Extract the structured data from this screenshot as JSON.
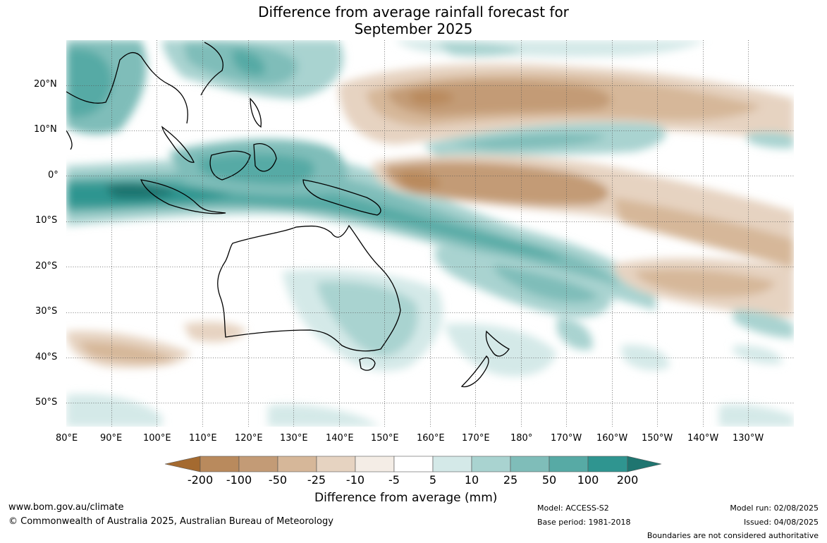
{
  "title": {
    "line1": "Difference from average rainfall forecast for",
    "line2": "September 2025"
  },
  "map": {
    "lat_labels": [
      "20°N",
      "10°N",
      "0°",
      "10°S",
      "20°S",
      "30°S",
      "40°S",
      "50°S"
    ],
    "lon_labels": [
      "80°E",
      "90°E",
      "100°E",
      "110°E",
      "120°E",
      "130°E",
      "140°E",
      "150°E",
      "160°E",
      "170°E",
      "180°",
      "170°W",
      "160°W",
      "150°W",
      "140°W",
      "130°W"
    ],
    "gridlines": "dotted",
    "lat_range": [
      "55°S",
      "30°N"
    ],
    "lon_range": [
      "80°E",
      "120°W"
    ]
  },
  "colorbar": {
    "labels": [
      "-200",
      "-100",
      "-50",
      "-25",
      "-10",
      "-5",
      "5",
      "10",
      "25",
      "50",
      "100",
      "200"
    ],
    "colors": [
      "#a46a30",
      "#b98a5d",
      "#c39b76",
      "#d6b799",
      "#e6d3c1",
      "#f4ede6",
      "#ffffff",
      "#d4e9e8",
      "#a9d3d0",
      "#7fbdb9",
      "#57aaa5",
      "#2f9590",
      "#1f7570"
    ],
    "extend": "both",
    "label": "Difference from average (mm)"
  },
  "footer": {
    "website": "www.bom.gov.au/climate",
    "copyright": "© Commonwealth of Australia 2025, Australian Bureau of Meteorology",
    "model": "Model: ACCESS-S2",
    "base_period": "Base period: 1981-2018",
    "model_run": "Model run: 02/08/2025",
    "issued": "Issued: 04/08/2025",
    "disclaimer": "Boundaries are not considered authoritative"
  }
}
